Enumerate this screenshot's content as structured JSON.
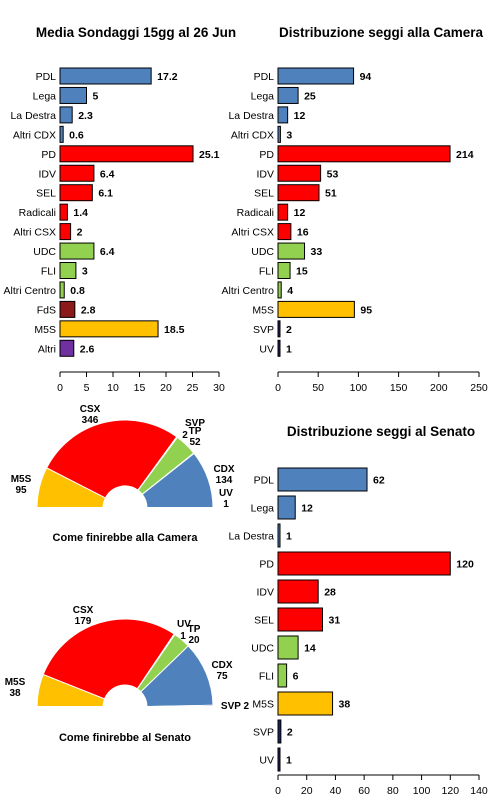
{
  "colors": {
    "cdx": "#4F81BD",
    "csx": "#FF0000",
    "m5s": "#FFC000",
    "udc": "#92D050",
    "fds": "#8B1A1A",
    "altri": "#7030A0",
    "uv": "#1F1F5F"
  },
  "chart_data": [
    {
      "type": "bar",
      "orientation": "horizontal",
      "title": "Media Sondaggi 15gg al 26 Jun",
      "categories": [
        "PDL",
        "Lega",
        "La Destra",
        "Altri CDX",
        "PD",
        "IDV",
        "SEL",
        "Radicali",
        "Altri CSX",
        "UDC",
        "FLI",
        "Altri Centro",
        "FdS",
        "M5S",
        "Altri"
      ],
      "values": [
        17.2,
        5,
        2.3,
        0.6,
        25.1,
        6.4,
        6.1,
        1.4,
        2,
        6.4,
        3,
        0.8,
        2.8,
        18.5,
        2.6
      ],
      "labels": [
        "17.2",
        "5",
        "2.3",
        "0.6",
        "25.1",
        "6.4",
        "6.1",
        "1.4",
        "2",
        "6.4",
        "3",
        "0.8",
        "2.8",
        "18.5",
        "2.6"
      ],
      "colors": [
        "cdx",
        "cdx",
        "cdx",
        "cdx",
        "csx",
        "csx",
        "csx",
        "csx",
        "csx",
        "udc",
        "udc",
        "udc",
        "fds",
        "m5s",
        "altri"
      ],
      "xlim": [
        0,
        30
      ],
      "ticks": [
        0,
        5,
        10,
        15,
        20,
        25,
        30
      ]
    },
    {
      "type": "bar",
      "orientation": "horizontal",
      "title": "Distribuzione seggi alla Camera",
      "categories": [
        "PDL",
        "Lega",
        "La Destra",
        "Altri CDX",
        "PD",
        "IDV",
        "SEL",
        "Radicali",
        "Altri CSX",
        "UDC",
        "FLI",
        "Altri Centro",
        "M5S",
        "SVP",
        "UV"
      ],
      "values": [
        94,
        25,
        12,
        3,
        214,
        53,
        51,
        12,
        16,
        33,
        15,
        4,
        95,
        2,
        1
      ],
      "labels": [
        "94",
        "25",
        "12",
        "3",
        "214",
        "53",
        "51",
        "12",
        "16",
        "33",
        "15",
        "4",
        "95",
        "2",
        "1"
      ],
      "colors": [
        "cdx",
        "cdx",
        "cdx",
        "cdx",
        "csx",
        "csx",
        "csx",
        "csx",
        "csx",
        "udc",
        "udc",
        "udc",
        "m5s",
        "uv",
        "uv"
      ],
      "xlim": [
        0,
        250
      ],
      "ticks": [
        0,
        50,
        100,
        150,
        200,
        250
      ]
    },
    {
      "type": "bar",
      "orientation": "horizontal",
      "title": "Distribuzione seggi al Senato",
      "categories": [
        "PDL",
        "Lega",
        "La Destra",
        "PD",
        "IDV",
        "SEL",
        "UDC",
        "FLI",
        "M5S",
        "SVP",
        "UV"
      ],
      "values": [
        62,
        12,
        1,
        120,
        28,
        31,
        14,
        6,
        38,
        2,
        1
      ],
      "labels": [
        "62",
        "12",
        "1",
        "120",
        "28",
        "31",
        "14",
        "6",
        "38",
        "2",
        "1"
      ],
      "colors": [
        "cdx",
        "cdx",
        "cdx",
        "csx",
        "csx",
        "csx",
        "udc",
        "udc",
        "m5s",
        "uv",
        "uv"
      ],
      "xlim": [
        0,
        140
      ],
      "ticks": [
        0,
        20,
        40,
        60,
        80,
        100,
        120,
        140
      ]
    },
    {
      "type": "pie",
      "shape": "half-donut",
      "caption": "Come finirebbe alla Camera",
      "slices": [
        {
          "name": "M5S",
          "value": 95,
          "color": "m5s"
        },
        {
          "name": "CSX",
          "value": 346,
          "color": "csx"
        },
        {
          "name": "SVP",
          "value": 2,
          "color": "uv"
        },
        {
          "name": "TP",
          "value": 52,
          "color": "udc"
        },
        {
          "name": "UV",
          "value": 1,
          "color": "uv"
        },
        {
          "name": "CDX",
          "value": 134,
          "color": "cdx"
        }
      ]
    },
    {
      "type": "pie",
      "shape": "half-donut",
      "caption": "Come finirebbe al Senato",
      "slices": [
        {
          "name": "M5S",
          "value": 38,
          "color": "m5s"
        },
        {
          "name": "CSX",
          "value": 179,
          "color": "csx"
        },
        {
          "name": "UV",
          "value": 1,
          "color": "uv"
        },
        {
          "name": "TP",
          "value": 20,
          "color": "udc"
        },
        {
          "name": "CDX",
          "value": 75,
          "color": "cdx"
        },
        {
          "name": "SVP",
          "value": 2,
          "color": "uv"
        }
      ]
    }
  ]
}
